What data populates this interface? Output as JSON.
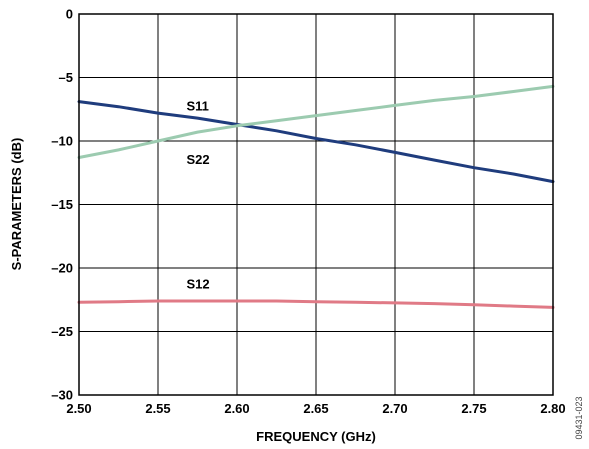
{
  "chart_data": {
    "type": "line",
    "title": "",
    "xlabel": "FREQUENCY (GHz)",
    "ylabel": "S-PARAMETERS (dB)",
    "xlim": [
      2.5,
      2.8
    ],
    "ylim": [
      -30,
      0
    ],
    "x_ticks": [
      2.5,
      2.55,
      2.6,
      2.65,
      2.7,
      2.75,
      2.8
    ],
    "x_tick_labels": [
      "2.50",
      "2.55",
      "2.60",
      "2.65",
      "2.70",
      "2.75",
      "2.80"
    ],
    "y_ticks": [
      0,
      -5,
      -10,
      -15,
      -20,
      -25,
      -30
    ],
    "y_tick_labels": [
      "0",
      "–5",
      "–10",
      "–15",
      "–20",
      "–25",
      "–30"
    ],
    "grid": true,
    "legend": "none",
    "series": [
      {
        "name": "S11",
        "color": "#1f3c7d",
        "x": [
          2.5,
          2.525,
          2.55,
          2.575,
          2.6,
          2.625,
          2.65,
          2.675,
          2.7,
          2.725,
          2.75,
          2.775,
          2.8
        ],
        "values": [
          -6.9,
          -7.3,
          -7.8,
          -8.2,
          -8.7,
          -9.2,
          -9.8,
          -10.3,
          -10.9,
          -11.5,
          -12.1,
          -12.6,
          -13.2
        ]
      },
      {
        "name": "S22",
        "color": "#9ccbb0",
        "x": [
          2.5,
          2.525,
          2.55,
          2.575,
          2.6,
          2.625,
          2.65,
          2.675,
          2.7,
          2.725,
          2.75,
          2.775,
          2.8
        ],
        "values": [
          -11.3,
          -10.7,
          -10.0,
          -9.3,
          -8.8,
          -8.4,
          -8.0,
          -7.6,
          -7.2,
          -6.8,
          -6.5,
          -6.1,
          -5.7
        ]
      },
      {
        "name": "S12",
        "color": "#e07a86",
        "x": [
          2.5,
          2.525,
          2.55,
          2.575,
          2.6,
          2.625,
          2.65,
          2.675,
          2.7,
          2.725,
          2.75,
          2.775,
          2.8
        ],
        "values": [
          -22.7,
          -22.65,
          -22.6,
          -22.6,
          -22.6,
          -22.6,
          -22.65,
          -22.7,
          -22.75,
          -22.8,
          -22.9,
          -23.0,
          -23.1
        ]
      }
    ],
    "annotations": [
      {
        "text": "S11",
        "x": 2.568,
        "y": -7.6
      },
      {
        "text": "S22",
        "x": 2.568,
        "y": -11.8
      },
      {
        "text": "S12",
        "x": 2.568,
        "y": -21.6
      }
    ],
    "figure_id": "09431-023"
  }
}
